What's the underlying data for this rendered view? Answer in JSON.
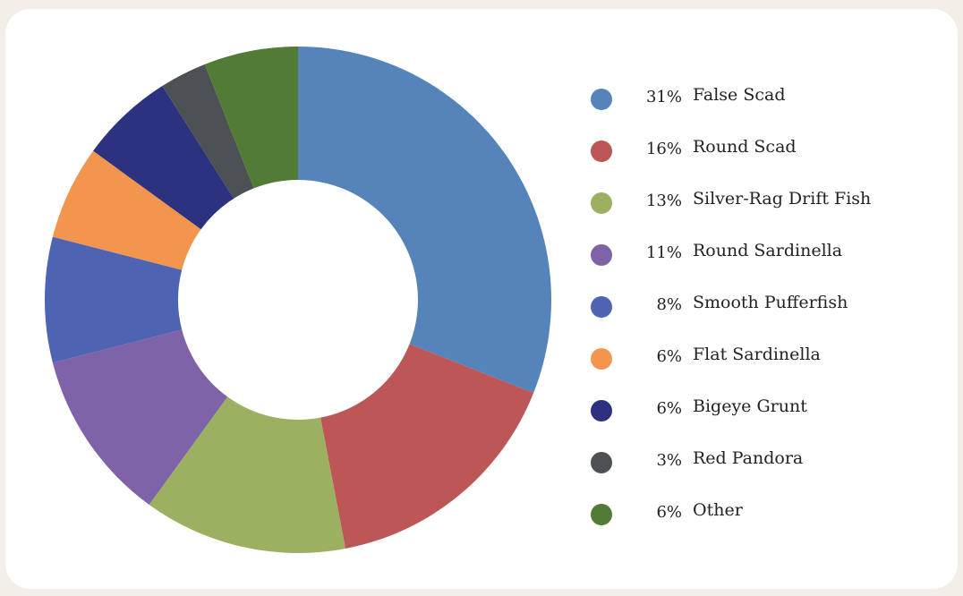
{
  "chart_data": {
    "type": "pie",
    "donut": true,
    "legend_position": "right",
    "slices": [
      {
        "label": "False Scad",
        "percent_label": "31%",
        "value": 31,
        "color": "#5584bb"
      },
      {
        "label": "Round Scad",
        "percent_label": "16%",
        "value": 16,
        "color": "#bd5656"
      },
      {
        "label": "Silver-Rag Drift Fish",
        "percent_label": "13%",
        "value": 13,
        "color": "#9bb060"
      },
      {
        "label": "Round Sardinella",
        "percent_label": "11%",
        "value": 11,
        "color": "#7e63a8"
      },
      {
        "label": "Smooth Pufferfish",
        "percent_label": "8%",
        "value": 8,
        "color": "#4f63b3"
      },
      {
        "label": "Flat Sardinella",
        "percent_label": "6%",
        "value": 6,
        "color": "#f2964f"
      },
      {
        "label": "Bigeye Grunt",
        "percent_label": "6%",
        "value": 6,
        "color": "#2c3180"
      },
      {
        "label": "Red Pandora",
        "percent_label": "3%",
        "value": 3,
        "color": "#4c5254"
      },
      {
        "label": "Other",
        "percent_label": "6%",
        "value": 6,
        "color": "#527c35"
      }
    ]
  }
}
